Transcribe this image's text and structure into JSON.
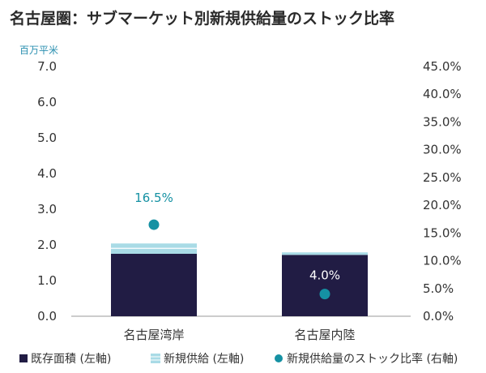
{
  "title": "名古屋圏：サブマーケット別新規供給量のストック比率",
  "chart_data": {
    "type": "bar",
    "unit_left": "百万平米",
    "categories": [
      "名古屋湾岸",
      "名古屋内陸"
    ],
    "series": [
      {
        "name": "既存面積 (左軸)",
        "axis": "left",
        "kind": "stacked-bar",
        "values": [
          1.75,
          1.72
        ]
      },
      {
        "name": "新規供給 (左軸)",
        "axis": "left",
        "kind": "stacked-bar",
        "values": [
          0.29,
          0.07
        ]
      },
      {
        "name": "新規供給量のストック比率 (右軸)",
        "axis": "right",
        "kind": "point",
        "values": [
          16.5,
          4.0
        ]
      }
    ],
    "data_labels": [
      "16.5%",
      "4.0%"
    ],
    "left_axis": {
      "ylim": [
        0,
        7
      ],
      "ticks": [
        "0.0",
        "1.0",
        "2.0",
        "3.0",
        "4.0",
        "5.0",
        "6.0",
        "7.0"
      ]
    },
    "right_axis": {
      "ylim": [
        0,
        45
      ],
      "ticks": [
        "0.0%",
        "5.0%",
        "10.0%",
        "15.0%",
        "20.0%",
        "25.0%",
        "30.0%",
        "35.0%",
        "40.0%",
        "45.0%"
      ]
    },
    "grid": false,
    "legend_position": "bottom",
    "colors": {
      "existing": "#211c44",
      "new": "#a9dbe6",
      "ratio": "#1591a3",
      "label": "#1591a3"
    }
  }
}
